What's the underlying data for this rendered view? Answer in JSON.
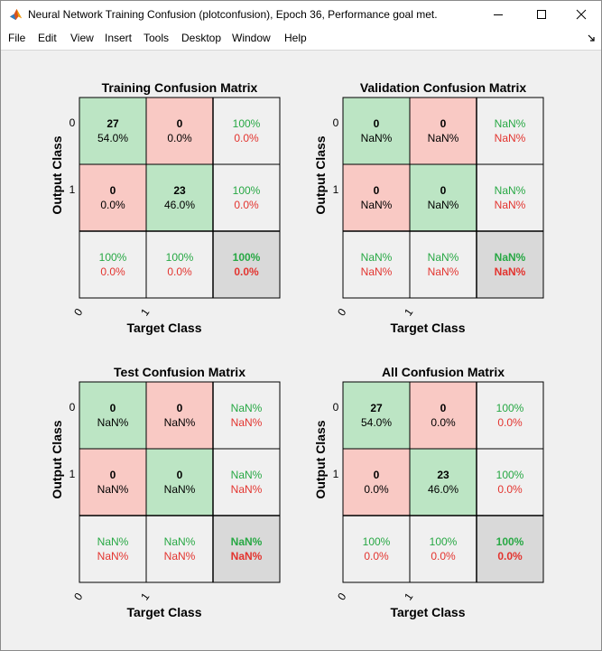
{
  "window": {
    "title": "Neural Network Training Confusion (plotconfusion), Epoch 36, Performance goal met.",
    "icon": "matlab-icon"
  },
  "menu": [
    "File",
    "Edit",
    "View",
    "Insert",
    "Tools",
    "Desktop",
    "Window",
    "Help"
  ],
  "colors": {
    "correct_cell": "#bce5c4",
    "wrong_cell": "#f9c9c4",
    "summary_cell": "#f0f0f0",
    "total_cell": "#d9d9d9",
    "green_text": "#27a844",
    "red_text": "#e3342f",
    "figure_bg": "#f0f0f0"
  },
  "chart_data": [
    {
      "type": "heatmap",
      "title": "Training Confusion Matrix",
      "xlabel": "Target Class",
      "ylabel": "Output Class",
      "x_ticks": [
        "0",
        "1"
      ],
      "y_ticks": [
        "0",
        "1"
      ],
      "cells": [
        [
          {
            "count": "27",
            "pct": "54.0%"
          },
          {
            "count": "0",
            "pct": "0.0%"
          },
          {
            "good": "100%",
            "bad": "0.0%"
          }
        ],
        [
          {
            "count": "0",
            "pct": "0.0%"
          },
          {
            "count": "23",
            "pct": "46.0%"
          },
          {
            "good": "100%",
            "bad": "0.0%"
          }
        ],
        [
          {
            "good": "100%",
            "bad": "0.0%"
          },
          {
            "good": "100%",
            "bad": "0.0%"
          },
          {
            "good": "100%",
            "bad": "0.0%"
          }
        ]
      ]
    },
    {
      "type": "heatmap",
      "title": "Validation Confusion Matrix",
      "xlabel": "Target Class",
      "ylabel": "Output Class",
      "x_ticks": [
        "0",
        "1"
      ],
      "y_ticks": [
        "0",
        "1"
      ],
      "cells": [
        [
          {
            "count": "0",
            "pct": "NaN%"
          },
          {
            "count": "0",
            "pct": "NaN%"
          },
          {
            "good": "NaN%",
            "bad": "NaN%"
          }
        ],
        [
          {
            "count": "0",
            "pct": "NaN%"
          },
          {
            "count": "0",
            "pct": "NaN%"
          },
          {
            "good": "NaN%",
            "bad": "NaN%"
          }
        ],
        [
          {
            "good": "NaN%",
            "bad": "NaN%"
          },
          {
            "good": "NaN%",
            "bad": "NaN%"
          },
          {
            "good": "NaN%",
            "bad": "NaN%"
          }
        ]
      ]
    },
    {
      "type": "heatmap",
      "title": "Test Confusion Matrix",
      "xlabel": "Target Class",
      "ylabel": "Output Class",
      "x_ticks": [
        "0",
        "1"
      ],
      "y_ticks": [
        "0",
        "1"
      ],
      "cells": [
        [
          {
            "count": "0",
            "pct": "NaN%"
          },
          {
            "count": "0",
            "pct": "NaN%"
          },
          {
            "good": "NaN%",
            "bad": "NaN%"
          }
        ],
        [
          {
            "count": "0",
            "pct": "NaN%"
          },
          {
            "count": "0",
            "pct": "NaN%"
          },
          {
            "good": "NaN%",
            "bad": "NaN%"
          }
        ],
        [
          {
            "good": "NaN%",
            "bad": "NaN%"
          },
          {
            "good": "NaN%",
            "bad": "NaN%"
          },
          {
            "good": "NaN%",
            "bad": "NaN%"
          }
        ]
      ]
    },
    {
      "type": "heatmap",
      "title": "All Confusion Matrix",
      "xlabel": "Target Class",
      "ylabel": "Output Class",
      "x_ticks": [
        "0",
        "1"
      ],
      "y_ticks": [
        "0",
        "1"
      ],
      "cells": [
        [
          {
            "count": "27",
            "pct": "54.0%"
          },
          {
            "count": "0",
            "pct": "0.0%"
          },
          {
            "good": "100%",
            "bad": "0.0%"
          }
        ],
        [
          {
            "count": "0",
            "pct": "0.0%"
          },
          {
            "count": "23",
            "pct": "46.0%"
          },
          {
            "good": "100%",
            "bad": "0.0%"
          }
        ],
        [
          {
            "good": "100%",
            "bad": "0.0%"
          },
          {
            "good": "100%",
            "bad": "0.0%"
          },
          {
            "good": "100%",
            "bad": "0.0%"
          }
        ]
      ]
    }
  ]
}
